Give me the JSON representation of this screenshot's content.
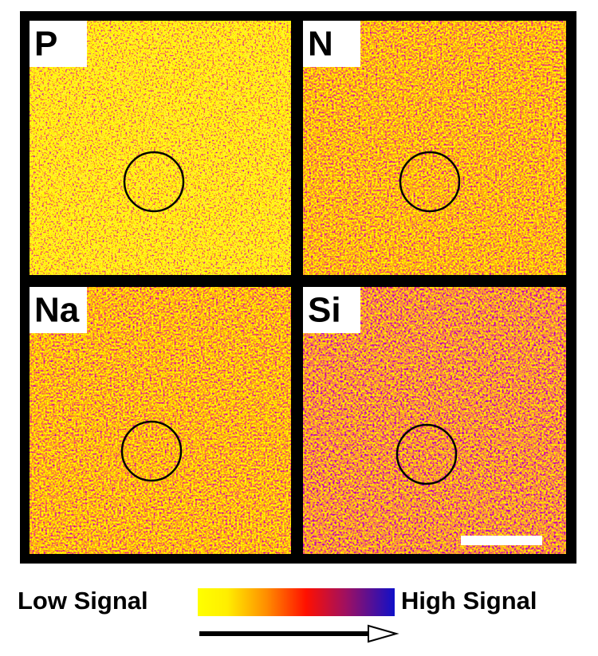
{
  "panels": [
    {
      "label": "P"
    },
    {
      "label": "N"
    },
    {
      "label": "Na"
    },
    {
      "label": "Si"
    }
  ],
  "legend": {
    "low": "Low Signal",
    "high": "High Signal"
  }
}
